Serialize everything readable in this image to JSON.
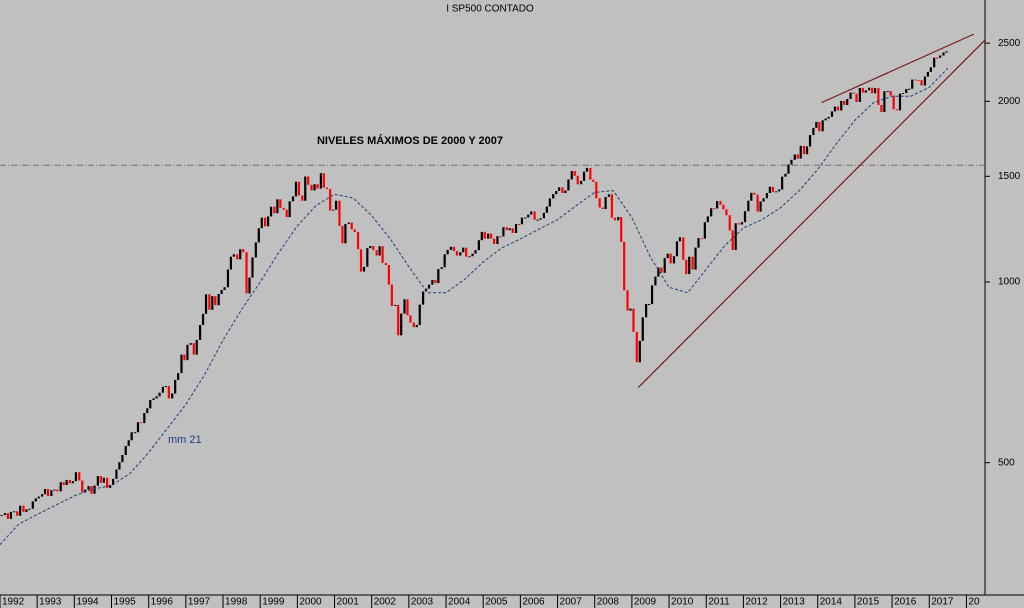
{
  "chart_data": {
    "type": "candlestick",
    "title": "I SP500 CONTADO",
    "log_scale": true,
    "up_color": "#000000",
    "down_color": "#ff0000",
    "xlim": [
      1992,
      2018.5
    ],
    "ylim": [
      301,
      2950
    ],
    "xticks": [
      1992,
      1993,
      1994,
      1995,
      1996,
      1997,
      1998,
      1999,
      2000,
      2001,
      2002,
      2003,
      2004,
      2005,
      2006,
      2007,
      2008,
      2009,
      2010,
      2011,
      2012,
      2013,
      2014,
      2015,
      2016,
      2017,
      {
        "value": 2018,
        "label": "20"
      }
    ],
    "yticks": [
      2500,
      2000,
      1500,
      1000,
      500
    ],
    "reference_line": {
      "value": 1565,
      "label": "NIVELES MÁXIMOS DE 2000 Y 2007",
      "color": "#707070"
    },
    "x": [
      1992.04,
      1992.13,
      1992.21,
      1992.29,
      1992.38,
      1992.46,
      1992.54,
      1992.63,
      1992.71,
      1992.79,
      1992.88,
      1992.96,
      1993.04,
      1993.13,
      1993.21,
      1993.29,
      1993.38,
      1993.46,
      1993.54,
      1993.63,
      1993.71,
      1993.79,
      1993.88,
      1993.96,
      1994.04,
      1994.13,
      1994.21,
      1994.29,
      1994.38,
      1994.46,
      1994.54,
      1994.63,
      1994.71,
      1994.79,
      1994.88,
      1994.96,
      1995.04,
      1995.13,
      1995.21,
      1995.29,
      1995.38,
      1995.46,
      1995.54,
      1995.63,
      1995.71,
      1995.79,
      1995.88,
      1995.96,
      1996.04,
      1996.13,
      1996.21,
      1996.29,
      1996.38,
      1996.46,
      1996.54,
      1996.63,
      1996.71,
      1996.79,
      1996.88,
      1996.96,
      1997.04,
      1997.13,
      1997.21,
      1997.29,
      1997.38,
      1997.46,
      1997.54,
      1997.63,
      1997.71,
      1997.79,
      1997.88,
      1997.96,
      1998.04,
      1998.13,
      1998.21,
      1998.29,
      1998.38,
      1998.46,
      1998.54,
      1998.63,
      1998.71,
      1998.79,
      1998.88,
      1998.96,
      1999.04,
      1999.13,
      1999.21,
      1999.29,
      1999.38,
      1999.46,
      1999.54,
      1999.63,
      1999.71,
      1999.79,
      1999.88,
      1999.96,
      2000.04,
      2000.13,
      2000.21,
      2000.29,
      2000.38,
      2000.46,
      2000.54,
      2000.63,
      2000.71,
      2000.79,
      2000.88,
      2000.96,
      2001.04,
      2001.13,
      2001.21,
      2001.29,
      2001.38,
      2001.46,
      2001.54,
      2001.63,
      2001.71,
      2001.79,
      2001.88,
      2001.96,
      2002.04,
      2002.13,
      2002.21,
      2002.29,
      2002.38,
      2002.46,
      2002.54,
      2002.63,
      2002.71,
      2002.79,
      2002.88,
      2002.96,
      2003.04,
      2003.13,
      2003.21,
      2003.29,
      2003.38,
      2003.46,
      2003.54,
      2003.63,
      2003.71,
      2003.79,
      2003.88,
      2003.96,
      2004.04,
      2004.13,
      2004.21,
      2004.29,
      2004.38,
      2004.46,
      2004.54,
      2004.63,
      2004.71,
      2004.79,
      2004.88,
      2004.96,
      2005.04,
      2005.13,
      2005.21,
      2005.29,
      2005.38,
      2005.46,
      2005.54,
      2005.63,
      2005.71,
      2005.79,
      2005.88,
      2005.96,
      2006.04,
      2006.13,
      2006.21,
      2006.29,
      2006.38,
      2006.46,
      2006.54,
      2006.63,
      2006.71,
      2006.79,
      2006.88,
      2006.96,
      2007.04,
      2007.13,
      2007.21,
      2007.29,
      2007.38,
      2007.46,
      2007.54,
      2007.63,
      2007.71,
      2007.79,
      2007.88,
      2007.96,
      2008.04,
      2008.13,
      2008.21,
      2008.29,
      2008.38,
      2008.46,
      2008.54,
      2008.63,
      2008.71,
      2008.79,
      2008.88,
      2008.96,
      2009.04,
      2009.13,
      2009.21,
      2009.29,
      2009.38,
      2009.46,
      2009.54,
      2009.63,
      2009.71,
      2009.79,
      2009.88,
      2009.96,
      2010.04,
      2010.13,
      2010.21,
      2010.29,
      2010.38,
      2010.46,
      2010.54,
      2010.63,
      2010.71,
      2010.79,
      2010.88,
      2010.96,
      2011.04,
      2011.13,
      2011.21,
      2011.29,
      2011.38,
      2011.46,
      2011.54,
      2011.63,
      2011.71,
      2011.79,
      2011.88,
      2011.96,
      2012.04,
      2012.13,
      2012.21,
      2012.29,
      2012.38,
      2012.46,
      2012.54,
      2012.63,
      2012.71,
      2012.79,
      2012.88,
      2012.96,
      2013.04,
      2013.13,
      2013.21,
      2013.29,
      2013.38,
      2013.46,
      2013.54,
      2013.63,
      2013.71,
      2013.79,
      2013.88,
      2013.96,
      2014.04,
      2014.13,
      2014.21,
      2014.29,
      2014.38,
      2014.46,
      2014.54,
      2014.63,
      2014.71,
      2014.79,
      2014.88,
      2014.96,
      2015.04,
      2015.13,
      2015.21,
      2015.29,
      2015.38,
      2015.46,
      2015.54,
      2015.63,
      2015.71,
      2015.79,
      2015.88,
      2015.96,
      2016.04,
      2016.13,
      2016.21,
      2016.29,
      2016.38,
      2016.46,
      2016.54,
      2016.63,
      2016.71,
      2016.79,
      2016.88,
      2016.96,
      2017.04,
      2017.13,
      2017.21,
      2017.29,
      2017.38,
      2017.46
    ],
    "values": [
      409,
      412,
      403,
      414,
      415,
      408,
      424,
      414,
      418,
      419,
      431,
      436,
      439,
      443,
      452,
      440,
      450,
      451,
      448,
      464,
      459,
      468,
      462,
      466,
      482,
      467,
      446,
      451,
      457,
      444,
      458,
      475,
      463,
      472,
      454,
      459,
      470,
      487,
      501,
      515,
      533,
      545,
      562,
      562,
      584,
      582,
      605,
      616,
      636,
      640,
      645,
      654,
      669,
      671,
      640,
      652,
      687,
      705,
      757,
      741,
      786,
      791,
      757,
      801,
      848,
      885,
      954,
      899,
      947,
      915,
      955,
      970,
      980,
      1049,
      1102,
      1112,
      1091,
      1134,
      1121,
      957,
      1017,
      1099,
      1164,
      1229,
      1280,
      1238,
      1286,
      1335,
      1302,
      1373,
      1329,
      1320,
      1283,
      1363,
      1389,
      1469,
      1394,
      1366,
      1499,
      1452,
      1421,
      1455,
      1431,
      1518,
      1437,
      1429,
      1315,
      1320,
      1366,
      1240,
      1160,
      1249,
      1256,
      1224,
      1211,
      1134,
      1041,
      1060,
      1139,
      1148,
      1130,
      1107,
      1147,
      1076,
      1067,
      990,
      912,
      916,
      815,
      886,
      936,
      880,
      856,
      841,
      848,
      917,
      964,
      975,
      990,
      1008,
      996,
      1051,
      1058,
      1112,
      1131,
      1145,
      1126,
      1107,
      1121,
      1141,
      1102,
      1104,
      1115,
      1130,
      1174,
      1212,
      1181,
      1204,
      1181,
      1157,
      1192,
      1191,
      1234,
      1220,
      1229,
      1207,
      1249,
      1248,
      1280,
      1281,
      1295,
      1311,
      1270,
      1270,
      1277,
      1304,
      1336,
      1378,
      1401,
      1418,
      1438,
      1407,
      1421,
      1482,
      1531,
      1503,
      1455,
      1474,
      1527,
      1549,
      1481,
      1468,
      1379,
      1331,
      1323,
      1386,
      1400,
      1280,
      1267,
      1283,
      1166,
      969,
      896,
      903,
      826,
      735,
      798,
      873,
      919,
      919,
      987,
      1021,
      1057,
      1036,
      1096,
      1115,
      1074,
      1104,
      1169,
      1187,
      1089,
      1031,
      1102,
      1049,
      1141,
      1183,
      1181,
      1258,
      1286,
      1327,
      1326,
      1364,
      1345,
      1321,
      1292,
      1219,
      1131,
      1253,
      1247,
      1258,
      1312,
      1366,
      1408,
      1398,
      1310,
      1362,
      1379,
      1407,
      1441,
      1412,
      1416,
      1426,
      1498,
      1515,
      1569,
      1598,
      1631,
      1606,
      1686,
      1633,
      1682,
      1757,
      1806,
      1848,
      1783,
      1859,
      1872,
      1884,
      1924,
      1960,
      1931,
      2003,
      1972,
      2018,
      2068,
      2059,
      1995,
      2105,
      2068,
      2086,
      2107,
      2063,
      2104,
      1972,
      1920,
      2079,
      2080,
      2044,
      1940,
      1932,
      2060,
      2065,
      2097,
      2099,
      2174,
      2171,
      2168,
      2126,
      2199,
      2239,
      2279,
      2364,
      2363,
      2384,
      2412,
      2423
    ],
    "ma": {
      "label": "mm 21",
      "color": "#1f3f7f",
      "x": [
        1992,
        1992.5,
        1993,
        1993.5,
        1994,
        1994.5,
        1995,
        1995.5,
        1996,
        1996.5,
        1997,
        1997.5,
        1998,
        1998.5,
        1999,
        1999.5,
        2000,
        2000.5,
        2001,
        2001.5,
        2002,
        2002.5,
        2003,
        2003.5,
        2004,
        2004.5,
        2005,
        2005.5,
        2006,
        2006.5,
        2007,
        2007.5,
        2008,
        2008.5,
        2009,
        2009.5,
        2010,
        2010.5,
        2011,
        2011.5,
        2012,
        2012.5,
        2013,
        2013.5,
        2014,
        2014.5,
        2015,
        2015.5,
        2016,
        2016.5,
        2017,
        2017.5
      ],
      "values": [
        365,
        395,
        410,
        425,
        440,
        452,
        458,
        480,
        520,
        570,
        625,
        700,
        800,
        900,
        1000,
        1120,
        1240,
        1340,
        1400,
        1380,
        1290,
        1180,
        1060,
        960,
        960,
        1010,
        1080,
        1140,
        1180,
        1225,
        1270,
        1340,
        1410,
        1420,
        1280,
        1100,
        980,
        960,
        1050,
        1150,
        1230,
        1270,
        1330,
        1420,
        1540,
        1700,
        1860,
        1990,
        2040,
        2040,
        2110,
        2270
      ]
    },
    "trendlines": [
      {
        "color": "#7a1a1a",
        "x": [
          2009.17,
          2018.5
        ],
        "y": [
          667,
          2530
        ]
      },
      {
        "color": "#7a1a1a",
        "x": [
          2014.1,
          2018.2
        ],
        "y": [
          1990,
          2588
        ]
      }
    ]
  }
}
